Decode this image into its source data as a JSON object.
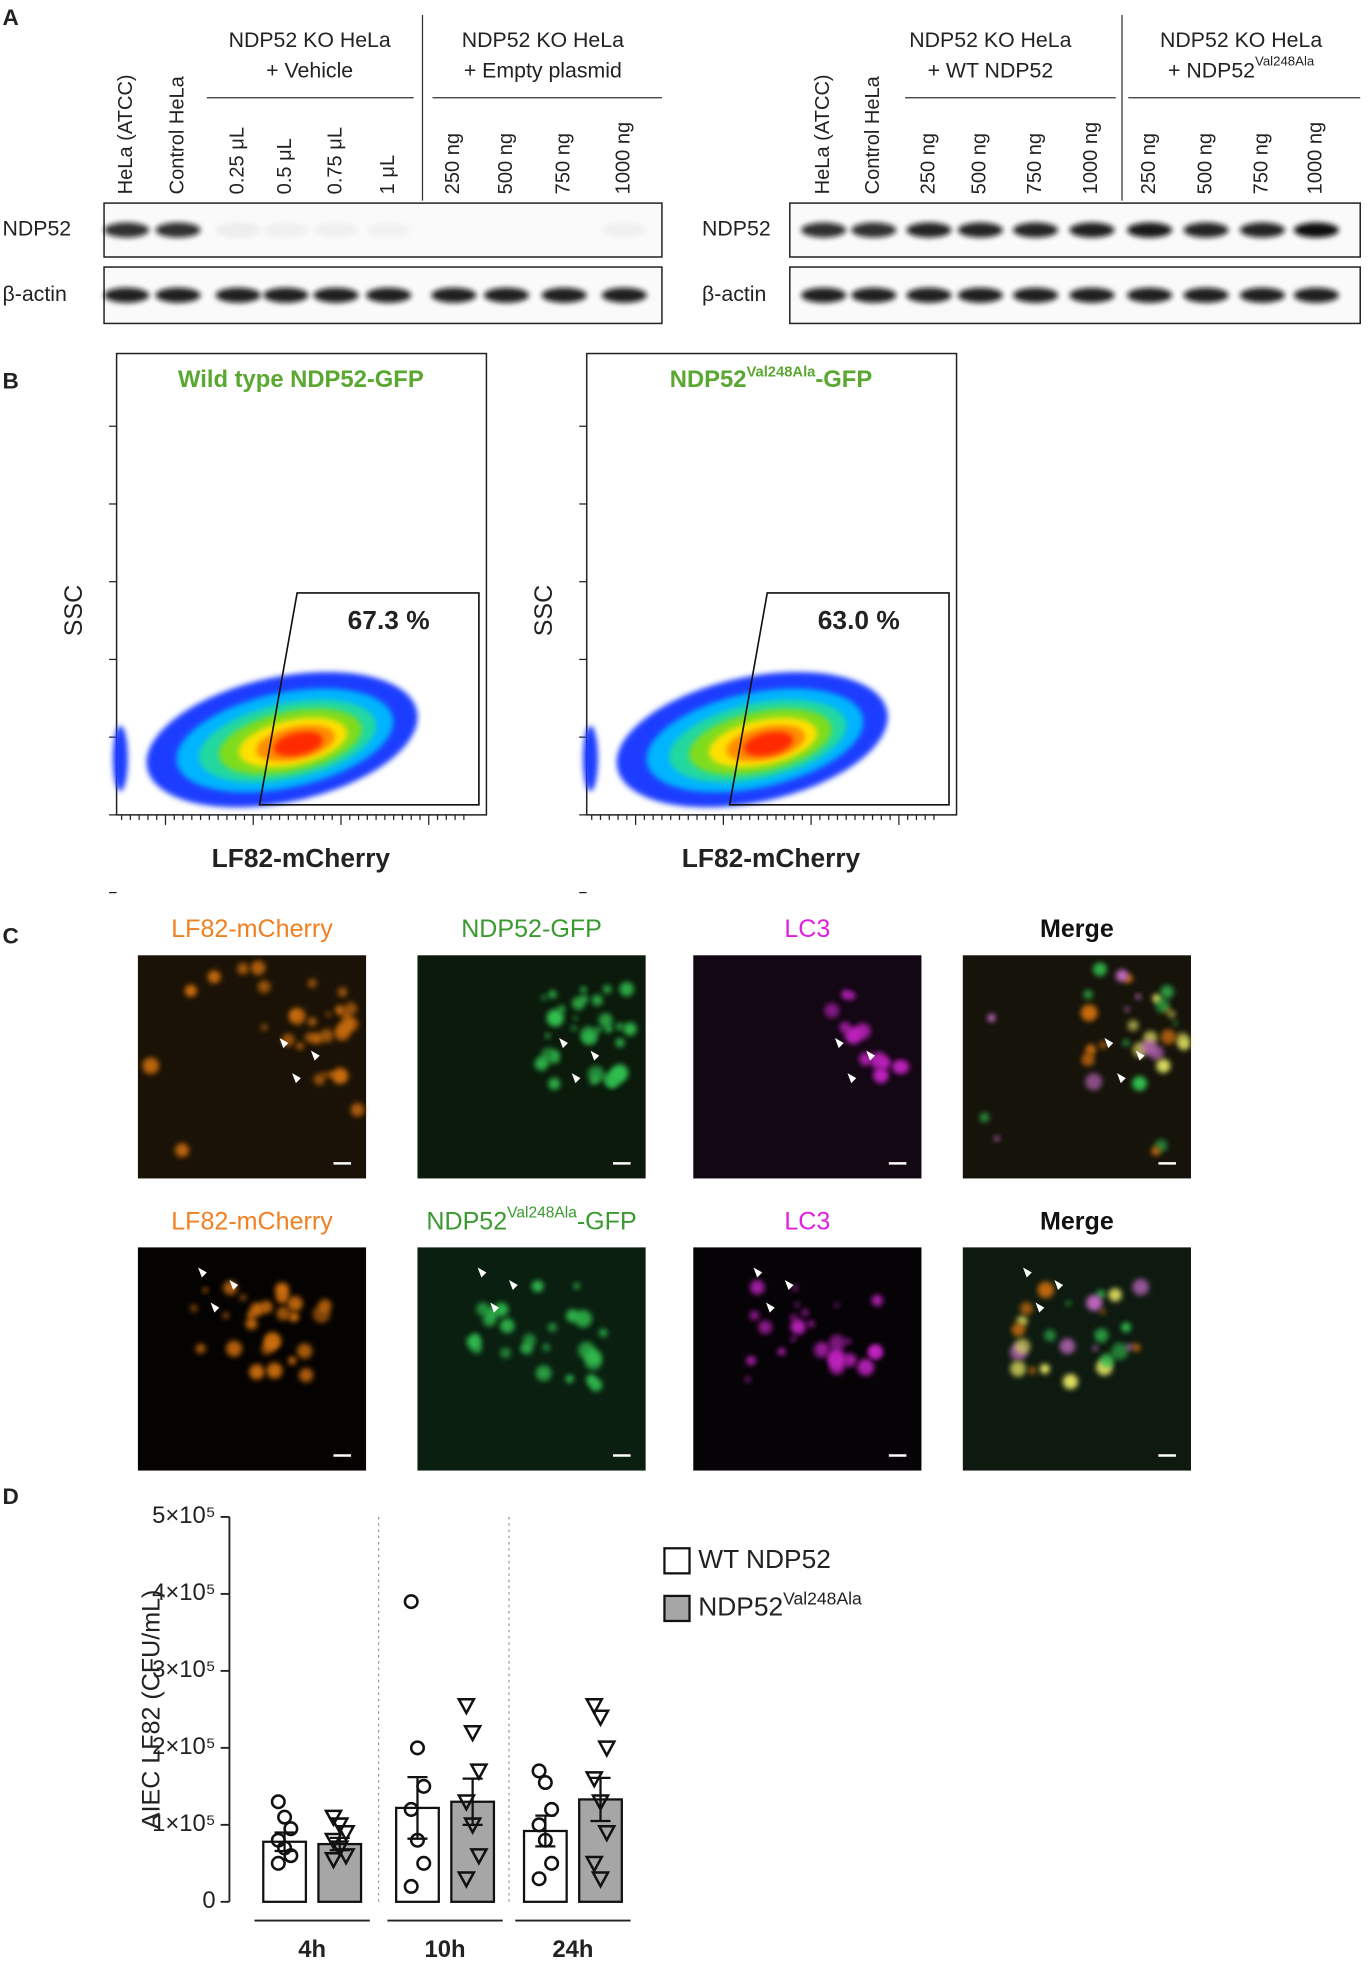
{
  "panel_labels": [
    "A",
    "B",
    "C",
    "D"
  ],
  "panel_a": {
    "blots": [
      {
        "group_headers": [
          {
            "line1": "NDP52 KO HeLa",
            "line2": "+ Vehicle"
          },
          {
            "line1": "NDP52 KO HeLa",
            "line2": "+ Empty plasmid"
          }
        ],
        "lanes": [
          "HeLa (ATCC)",
          "Control HeLa",
          "0.25 μL",
          "0.5 μL",
          "0.75 μL",
          "1 μL",
          "250 ng",
          "500 ng",
          "750 ng",
          "1000 ng"
        ],
        "rows": [
          "NDP52",
          "β-actin"
        ]
      },
      {
        "group_headers": [
          {
            "line1": "NDP52 KO HeLa",
            "line2": "+ WT NDP52"
          },
          {
            "line1": "NDP52 KO HeLa",
            "line2": "+ NDP52",
            "line2_sup": "Val248Ala"
          }
        ],
        "lanes": [
          "HeLa (ATCC)",
          "Control HeLa",
          "250 ng",
          "500 ng",
          "750 ng",
          "1000 ng",
          "250 ng",
          "500 ng",
          "750 ng",
          "1000 ng"
        ],
        "rows": [
          "NDP52",
          "β-actin"
        ]
      }
    ]
  },
  "panel_b": {
    "plots": [
      {
        "title": "Wild type NDP52-GFP",
        "y_label": "SSC",
        "x_label": "LF82-mCherry",
        "gate_percent": "67.3 %"
      },
      {
        "title": "NDP52",
        "title_sup": "Val248Ala",
        "title_suffix": "-GFP",
        "y_label": "SSC",
        "x_label": "LF82-mCherry",
        "gate_percent": "63.0 %"
      }
    ]
  },
  "panel_c": {
    "rows": [
      [
        {
          "label": "LF82-mCherry"
        },
        {
          "label": "NDP52-GFP"
        },
        {
          "label": "LC3"
        },
        {
          "label": "Merge"
        }
      ],
      [
        {
          "label": "LF82-mCherry"
        },
        {
          "label": "NDP52",
          "label_sup": "Val248Ala",
          "label_suffix": "-GFP"
        },
        {
          "label": "LC3"
        },
        {
          "label": "Merge"
        }
      ]
    ]
  },
  "chart_data": {
    "type": "bar",
    "y_label": "AIEC LF82 (CFU/mL)",
    "categories": [
      "4h",
      "10h",
      "24h"
    ],
    "legend": "right",
    "ylim": [
      0,
      500000
    ],
    "yticks": [
      0,
      {
        "value": 100000,
        "label": "1×10⁵"
      },
      {
        "value": 200000,
        "label": "2×10⁵"
      },
      {
        "value": 300000,
        "label": "3×10⁵"
      },
      {
        "value": 400000,
        "label": "4×10⁵"
      },
      {
        "value": 500000,
        "label": "5×10⁵"
      }
    ],
    "series": [
      {
        "name": "WT NDP52",
        "color": "#ffffff",
        "marker": "circle",
        "values": [
          78000,
          122000,
          92000
        ],
        "errors": [
          12000,
          40000,
          20000
        ],
        "points": [
          [
            130000,
            110000,
            95000,
            80000,
            70000,
            60000,
            50000
          ],
          [
            390000,
            200000,
            150000,
            120000,
            80000,
            50000,
            20000
          ],
          [
            170000,
            155000,
            120000,
            100000,
            80000,
            50000,
            30000
          ]
        ]
      },
      {
        "name": "NDP52",
        "name_sup": "Val248Ala",
        "color": "#a6a6a6",
        "marker": "triangle-down",
        "values": [
          75000,
          130000,
          133000
        ],
        "errors": [
          8000,
          30000,
          28000
        ],
        "points": [
          [
            110000,
            100000,
            90000,
            80000,
            70000,
            60000,
            55000
          ],
          [
            255000,
            220000,
            170000,
            130000,
            100000,
            60000,
            30000
          ],
          [
            255000,
            240000,
            200000,
            160000,
            130000,
            90000,
            50000,
            30000
          ]
        ]
      }
    ]
  }
}
